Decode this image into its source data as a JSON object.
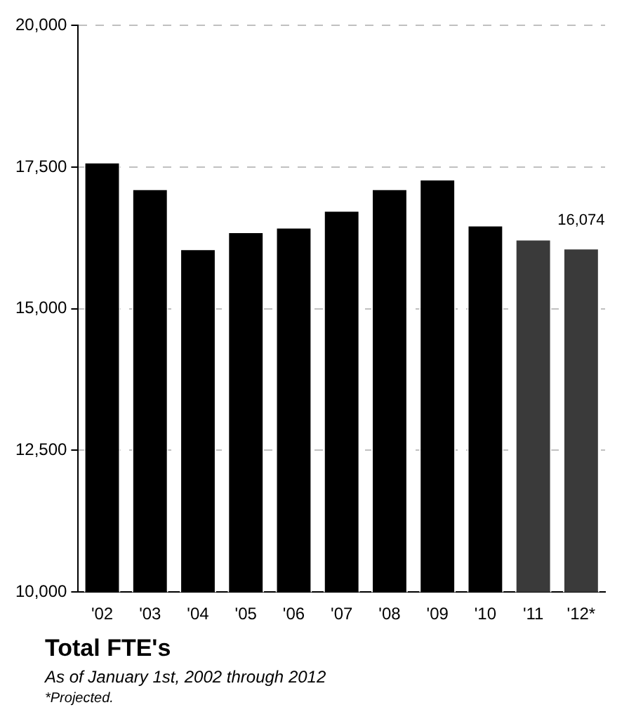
{
  "chart_data": {
    "type": "bar",
    "title": "Total FTE's",
    "subtitle": "As of January 1st, 2002 through 2012",
    "annotations": [
      "*Projected."
    ],
    "categories": [
      "'02",
      "'03",
      "'04",
      "'05",
      "'06",
      "'07",
      "'08",
      "'09",
      "'10",
      "'11",
      "'12*"
    ],
    "values": [
      17590,
      17120,
      16060,
      16360,
      16440,
      16740,
      17120,
      17290,
      16480,
      16230,
      16074
    ],
    "value_labels": [
      null,
      null,
      null,
      null,
      null,
      null,
      null,
      null,
      null,
      null,
      "16,074"
    ],
    "colors": [
      "#000000",
      "#000000",
      "#000000",
      "#000000",
      "#000000",
      "#000000",
      "#000000",
      "#000000",
      "#000000",
      "#3a3a3a",
      "#3a3a3a"
    ],
    "ylim": [
      10000,
      20000
    ],
    "yticks": [
      {
        "value": 10000,
        "label": "10,000"
      },
      {
        "value": 12500,
        "label": "12,500"
      },
      {
        "value": 15000,
        "label": "15,000"
      },
      {
        "value": 17500,
        "label": "17,500"
      },
      {
        "value": 20000,
        "label": "20,000"
      }
    ],
    "grid": "y",
    "legend": false
  }
}
